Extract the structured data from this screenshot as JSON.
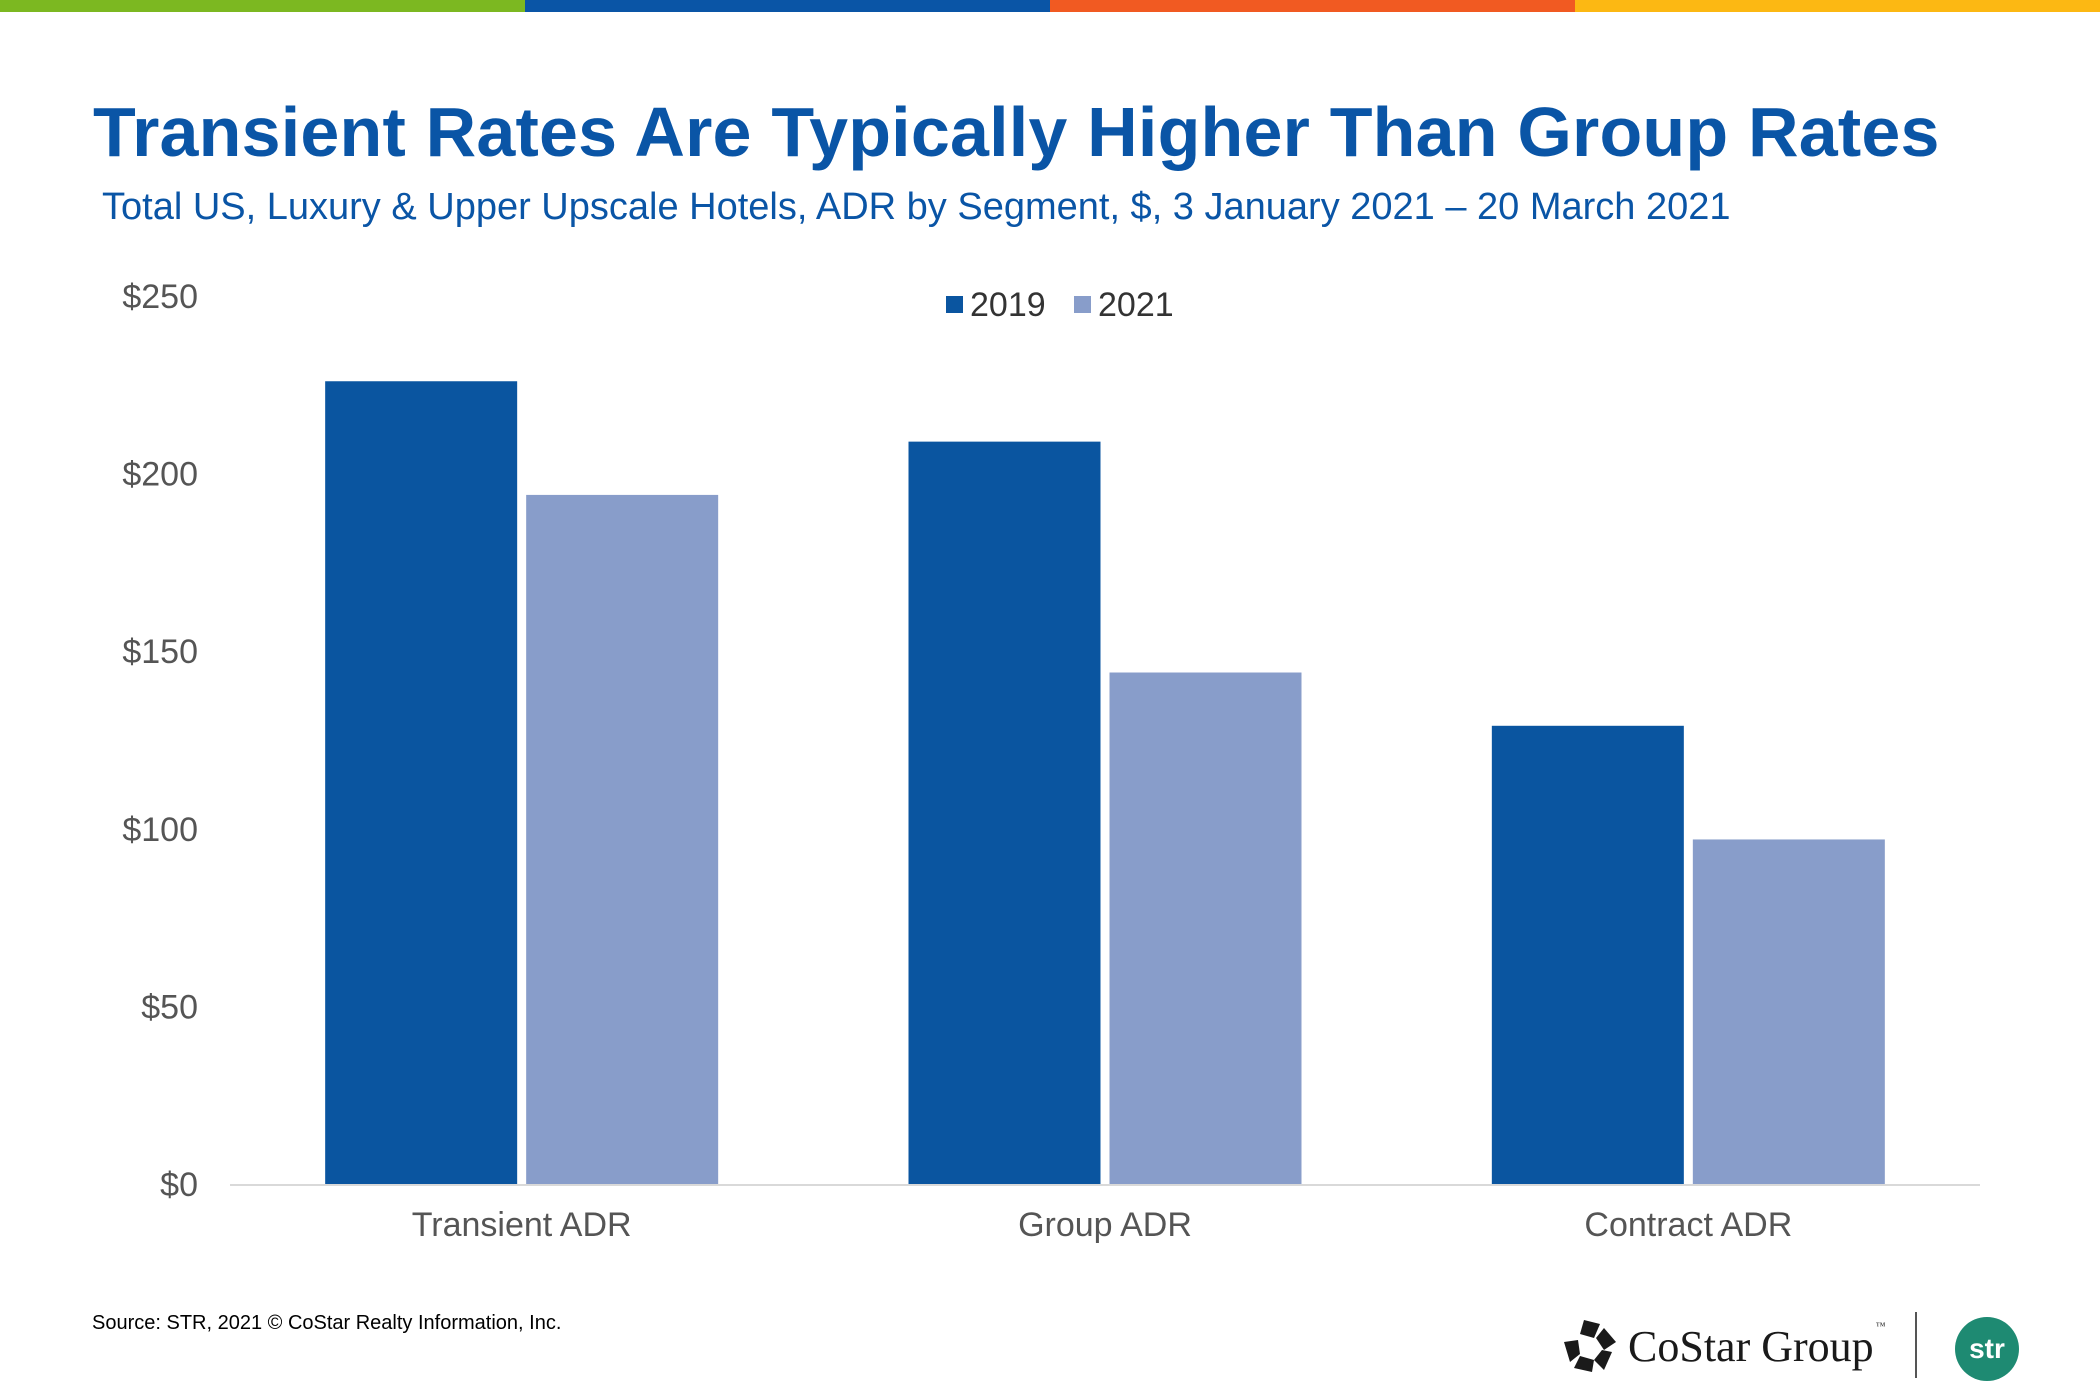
{
  "top_stripe_colors": [
    "#7cb821",
    "#0a55a6",
    "#f15a22",
    "#fcb813"
  ],
  "header": {
    "title": "Transient Rates Are Typically Higher Than Group Rates",
    "subtitle": "Total US, Luxury & Upper Upscale Hotels, ADR by Segment, $, 3 January 2021 – 20 March 2021"
  },
  "colors": {
    "title": "#0a55a6",
    "series_2019": "#0a55a0",
    "series_2021": "#889dca",
    "axis_text": "#555555",
    "baseline": "#d9d9d9",
    "str_logo": "#1e8a72"
  },
  "chart_data": {
    "type": "bar",
    "title": "Transient Rates Are Typically Higher Than Group Rates",
    "subtitle": "Total US, Luxury & Upper Upscale Hotels, ADR by Segment, $, 3 January 2021 – 20 March 2021",
    "categories": [
      "Transient ADR",
      "Group ADR",
      "Contract ADR"
    ],
    "series": [
      {
        "name": "2019",
        "values": [
          226,
          209,
          129
        ]
      },
      {
        "name": "2021",
        "values": [
          194,
          144,
          97
        ]
      }
    ],
    "xlabel": "",
    "ylabel": "",
    "ylim": [
      0,
      250
    ],
    "yticks": [
      0,
      50,
      100,
      150,
      200,
      250
    ],
    "ytick_labels": [
      "$0",
      "$50",
      "$100",
      "$150",
      "$200",
      "$250"
    ],
    "legend": "top-center",
    "grid": false
  },
  "footer": {
    "source": "Source: STR, 2021 © CoStar Realty Information, Inc.",
    "costar_logo_text": "CoStar Group",
    "costar_tm": "™",
    "str_logo_text": "str"
  }
}
